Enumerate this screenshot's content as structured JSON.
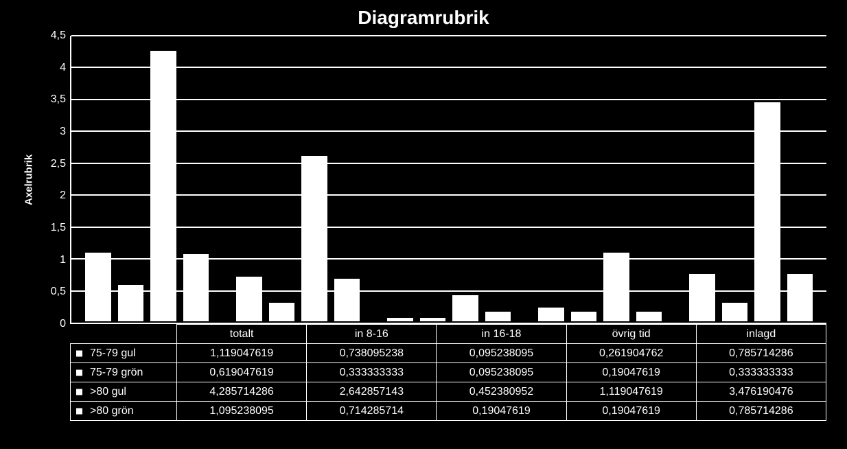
{
  "chart": {
    "type": "bar",
    "title": "Diagramrubrik",
    "title_fontsize": 28,
    "title_fontweight": "bold",
    "y_axis_label": "Axelrubrik",
    "ylabel_fontsize": 15,
    "ylim": [
      0,
      4.5
    ],
    "ytick_step": 0.5,
    "yticks": [
      0,
      0.5,
      1,
      1.5,
      2,
      2.5,
      3,
      3.5,
      4,
      4.5
    ],
    "ytick_labels": [
      "0",
      "0,5",
      "1",
      "1,5",
      "2",
      "2,5",
      "3",
      "3,5",
      "4",
      "4,5"
    ],
    "background_color": "#000000",
    "bar_color": "#ffffff",
    "bar_border_color": "#000000",
    "grid_color": "#ffffff",
    "axis_color": "#ffffff",
    "text_color": "#ffffff",
    "tick_fontsize": 16,
    "categories": [
      "totalt",
      "in 8-16",
      "in 16-18",
      "övrig tid",
      "inlagd"
    ],
    "series": [
      {
        "name": "75-79 gul",
        "marker": "square",
        "values": [
          1.119047619,
          0.738095238,
          0.095238095,
          0.261904762,
          0.785714286
        ],
        "labels": [
          "1,119047619",
          "0,738095238",
          "0,095238095",
          "0,261904762",
          "0,785714286"
        ]
      },
      {
        "name": "75-79 grön",
        "marker": "square",
        "values": [
          0.619047619,
          0.333333333,
          0.095238095,
          0.19047619,
          0.333333333
        ],
        "labels": [
          "0,619047619",
          "0,333333333",
          "0,095238095",
          "0,19047619",
          "0,333333333"
        ]
      },
      {
        "name": ">80 gul",
        "marker": "square",
        "values": [
          4.285714286,
          2.642857143,
          0.452380952,
          1.119047619,
          3.476190476
        ],
        "labels": [
          "4,285714286",
          "2,642857143",
          "0,452380952",
          "1,119047619",
          "3,476190476"
        ]
      },
      {
        "name": ">80 grön",
        "marker": "square",
        "values": [
          1.095238095,
          0.714285714,
          0.19047619,
          0.19047619,
          0.785714286
        ],
        "labels": [
          "1,095238095",
          "0,714285714",
          "0,19047619",
          "0,19047619",
          "0,785714286"
        ]
      }
    ],
    "table_fontsize": 16,
    "table_border_color": "#ffffff"
  }
}
